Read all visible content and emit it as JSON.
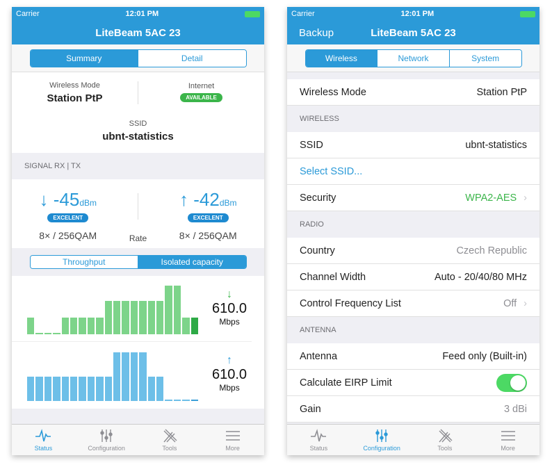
{
  "status_bar": {
    "carrier": "Carrier",
    "time": "12:01 PM"
  },
  "left": {
    "title": "LiteBeam 5AC 23",
    "tabs": [
      "Summary",
      "Detail"
    ],
    "wireless_mode": {
      "label": "Wireless Mode",
      "value": "Station PtP"
    },
    "internet": {
      "label": "Internet",
      "badge": "AVAILABLE",
      "color": "#3bb54a"
    },
    "ssid": {
      "label": "SSID",
      "value": "ubnt-statistics"
    },
    "signal_header": "SIGNAL RX | TX",
    "rx": {
      "arrow": "↓",
      "value": "-45",
      "unit": "dBm",
      "badge": "EXCELENT",
      "rate": "8× / 256QAM"
    },
    "tx": {
      "arrow": "↑",
      "value": "-42",
      "unit": "dBm",
      "badge": "EXCELENT",
      "rate": "8× / 256QAM"
    },
    "rate_label": "Rate",
    "chart_tabs": [
      "Throughput",
      "Isolated capacity"
    ],
    "chart_data": [
      {
        "type": "bar",
        "name": "download",
        "color": "#7dd48a",
        "highlight": "#2eaa46",
        "values": [
          0.35,
          0.02,
          0.02,
          0.02,
          0.35,
          0.35,
          0.35,
          0.35,
          0.35,
          0.68,
          0.68,
          0.68,
          0.68,
          0.68,
          0.68,
          0.68,
          1.0,
          1.0,
          0.35,
          0.35
        ],
        "arrow": "↓",
        "speed": "610.0",
        "unit": "Mbps"
      },
      {
        "type": "bar",
        "name": "upload",
        "color": "#6dbfe8",
        "highlight": "#3a9fd8",
        "values": [
          0.5,
          0.5,
          0.5,
          0.5,
          0.5,
          0.5,
          0.5,
          0.5,
          0.5,
          0.5,
          1.0,
          1.0,
          1.0,
          1.0,
          0.5,
          0.5,
          0.02,
          0.02,
          0.02,
          0.02
        ],
        "arrow": "↑",
        "speed": "610.0",
        "unit": "Mbps"
      }
    ]
  },
  "right": {
    "back": "Backup",
    "title": "LiteBeam 5AC 23",
    "tabs": [
      "Wireless",
      "Network",
      "System"
    ],
    "top_row": {
      "label": "Wireless Mode",
      "value": "Station PtP"
    },
    "sections": [
      {
        "header": "WIRELESS",
        "rows": [
          {
            "label": "SSID",
            "value": "ubnt-statistics"
          },
          {
            "label": "Select SSID...",
            "link": true
          },
          {
            "label": "Security",
            "value": "WPA2-AES",
            "style": "green",
            "chevron": true
          }
        ]
      },
      {
        "header": "RADIO",
        "rows": [
          {
            "label": "Country",
            "value": "Czech Republic",
            "style": "muted"
          },
          {
            "label": "Channel Width",
            "value": "Auto - 20/40/80 MHz"
          },
          {
            "label": "Control Frequency List",
            "value": "Off",
            "style": "muted",
            "chevron": true
          }
        ]
      },
      {
        "header": "ANTENNA",
        "rows": [
          {
            "label": "Antenna",
            "value": "Feed only (Built-in)"
          },
          {
            "label": "Calculate EIRP Limit",
            "toggle": true,
            "toggle_on": true
          },
          {
            "label": "Gain",
            "value": "3 dBi",
            "style": "muted"
          }
        ]
      }
    ]
  },
  "tabbar": [
    "Status",
    "Configuration",
    "Tools",
    "More"
  ],
  "colors": {
    "accent": "#2b9ad8",
    "green": "#3bb54a"
  }
}
